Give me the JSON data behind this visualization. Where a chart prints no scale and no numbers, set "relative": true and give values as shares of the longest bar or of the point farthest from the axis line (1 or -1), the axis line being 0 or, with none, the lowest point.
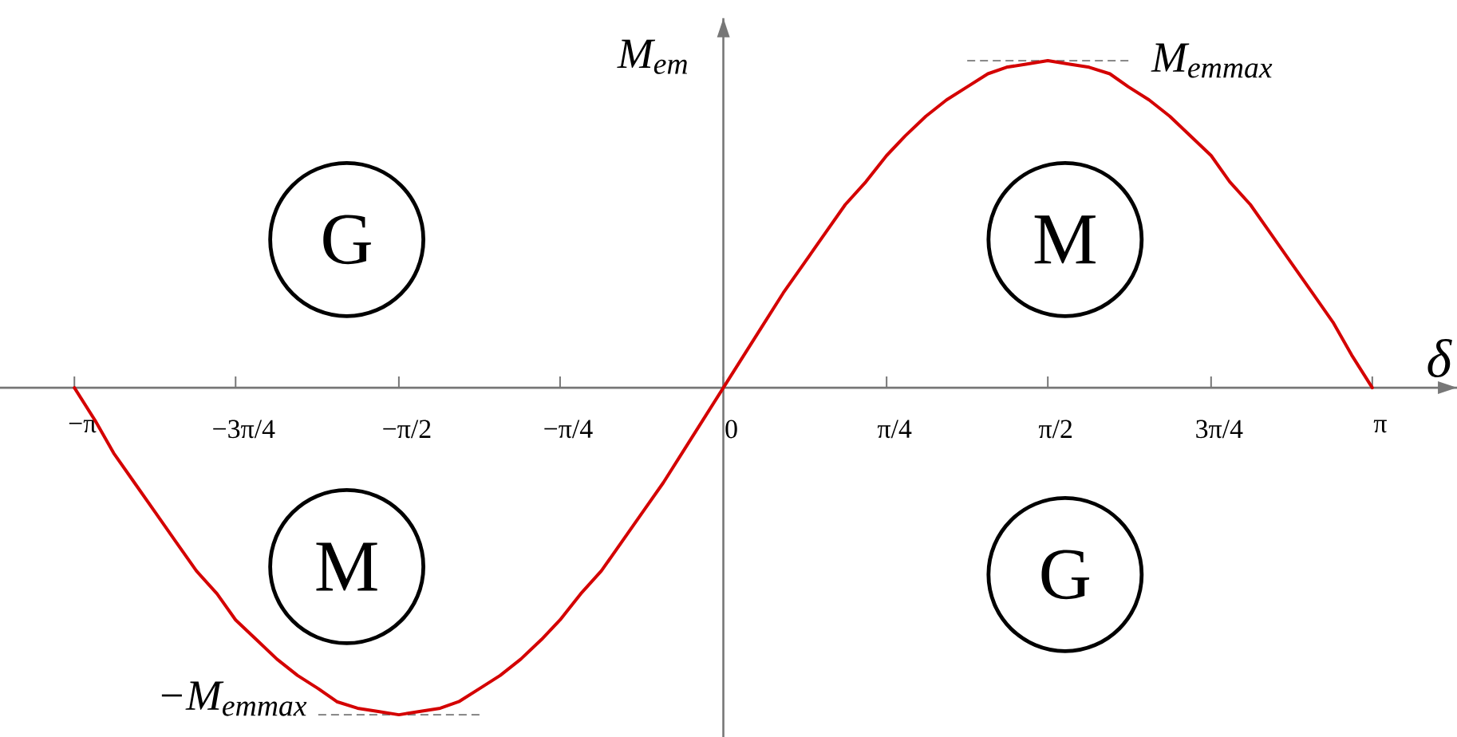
{
  "chart_data": {
    "type": "line",
    "relative": true,
    "xlabel": "δ",
    "ylabel": "M$_{em}$",
    "x": [
      -3.14,
      -3.04,
      -2.95,
      -2.85,
      -2.75,
      -2.65,
      -2.55,
      -2.45,
      -2.36,
      -2.26,
      -2.16,
      -2.06,
      -1.96,
      -1.87,
      -1.77,
      -1.67,
      -1.57,
      -1.47,
      -1.37,
      -1.28,
      -1.18,
      -1.08,
      -0.98,
      -0.88,
      -0.79,
      -0.69,
      -0.59,
      -0.49,
      -0.39,
      -0.29,
      -0.2,
      -0.1,
      0,
      0.1,
      0.2,
      0.29,
      0.39,
      0.49,
      0.59,
      0.69,
      0.79,
      0.88,
      0.98,
      1.08,
      1.18,
      1.28,
      1.37,
      1.47,
      1.57,
      1.67,
      1.77,
      1.87,
      1.96,
      2.06,
      2.16,
      2.26,
      2.36,
      2.45,
      2.55,
      2.65,
      2.75,
      2.85,
      2.95,
      3.04,
      3.14
    ],
    "values": [
      0,
      -0.1,
      -0.2,
      -0.29,
      -0.38,
      -0.47,
      -0.56,
      -0.63,
      -0.71,
      -0.77,
      -0.83,
      -0.88,
      -0.92,
      -0.96,
      -0.98,
      -0.99,
      -1,
      -0.99,
      -0.98,
      -0.96,
      -0.92,
      -0.88,
      -0.83,
      -0.77,
      -0.71,
      -0.63,
      -0.56,
      -0.47,
      -0.38,
      -0.29,
      -0.2,
      -0.1,
      0,
      0.1,
      0.2,
      0.29,
      0.38,
      0.47,
      0.56,
      0.63,
      0.71,
      0.77,
      0.83,
      0.88,
      0.92,
      0.96,
      0.98,
      0.99,
      1,
      0.99,
      0.98,
      0.96,
      0.92,
      0.88,
      0.83,
      0.77,
      0.71,
      0.63,
      0.56,
      0.47,
      0.38,
      0.29,
      0.2,
      0.1,
      0
    ],
    "color": "#d40000",
    "xlim": [
      -3.5,
      3.55
    ],
    "xticks": [
      {
        "value": -3.14,
        "label": "−π"
      },
      {
        "value": -2.36,
        "label": "−3π/4"
      },
      {
        "value": -1.57,
        "label": "−π/2"
      },
      {
        "value": -0.79,
        "label": "−π/4"
      },
      0,
      {
        "value": 0.79,
        "label": "π/4"
      },
      {
        "value": 1.57,
        "label": "π/2"
      },
      {
        "value": 2.36,
        "label": "3π/4"
      },
      {
        "value": 3.14,
        "label": "π"
      }
    ],
    "annotations": [
      {
        "text": "M$_{emmax}$",
        "x": 1.57,
        "y": 1
      },
      {
        "text": "−M$_{emmax}$",
        "x": -1.57,
        "y": -1
      },
      "G",
      "M",
      "M",
      "G"
    ]
  }
}
